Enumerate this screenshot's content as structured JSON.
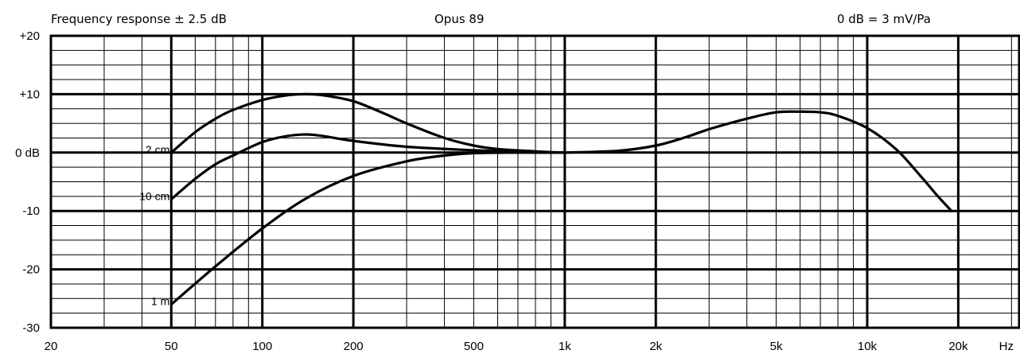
{
  "header": {
    "left": "Frequency response ± 2.5 dB",
    "center": "Opus 89",
    "right": "0 dB = 3 mV/Pa"
  },
  "chart_data": {
    "type": "line",
    "title": "Opus 89",
    "subtitle": "Frequency response ± 2.5 dB",
    "annotation": "0 dB = 3 mV/Pa",
    "xscale": "log",
    "xlim": [
      20,
      32000
    ],
    "ylim": [
      -30,
      20
    ],
    "xunit_label": "Hz",
    "grid": true,
    "x_ticks": [
      {
        "value": 20,
        "label": "20"
      },
      {
        "value": 50,
        "label": "50"
      },
      {
        "value": 100,
        "label": "100"
      },
      {
        "value": 200,
        "label": "200"
      },
      {
        "value": 500,
        "label": "500"
      },
      {
        "value": 1000,
        "label": "1k"
      },
      {
        "value": 2000,
        "label": "2k"
      },
      {
        "value": 5000,
        "label": "5k"
      },
      {
        "value": 10000,
        "label": "10k"
      },
      {
        "value": 20000,
        "label": "20k"
      }
    ],
    "y_ticks": [
      {
        "value": 20,
        "label": "+20"
      },
      {
        "value": 10,
        "label": "+10"
      },
      {
        "value": 0,
        "label": "0 dB"
      },
      {
        "value": -10,
        "label": "-10"
      },
      {
        "value": -20,
        "label": "-20"
      },
      {
        "value": -30,
        "label": "-30"
      }
    ],
    "series": [
      {
        "name": "2 cm",
        "x": [
          50,
          60,
          70,
          80,
          100,
          120,
          140,
          160,
          200,
          250,
          300,
          400,
          500,
          600,
          800,
          1000
        ],
        "y": [
          0,
          3.5,
          5.8,
          7.3,
          9.0,
          9.8,
          10.0,
          9.8,
          8.8,
          6.8,
          5.0,
          2.5,
          1.2,
          0.6,
          0.2,
          0
        ]
      },
      {
        "name": "10 cm",
        "x": [
          50,
          60,
          70,
          80,
          100,
          120,
          140,
          160,
          200,
          300,
          500,
          700,
          1000
        ],
        "y": [
          -8,
          -4.5,
          -2,
          -0.5,
          1.8,
          2.8,
          3.1,
          2.8,
          2.0,
          1.0,
          0.4,
          0.1,
          0
        ]
      },
      {
        "name": "1 m",
        "x": [
          50,
          70,
          100,
          140,
          200,
          300,
          400,
          500,
          700,
          1000
        ],
        "y": [
          -26,
          -19.5,
          -13,
          -7.8,
          -4.0,
          -1.5,
          -0.5,
          -0.1,
          0,
          0
        ]
      },
      {
        "name": "",
        "x": [
          1000,
          1500,
          2000,
          2500,
          3000,
          4000,
          5000,
          6000,
          7000,
          8000,
          10000,
          12500,
          15000,
          17000,
          19000
        ],
        "y": [
          0,
          0.3,
          1.2,
          2.6,
          4.0,
          5.8,
          6.9,
          7.0,
          6.9,
          6.3,
          4.2,
          0.5,
          -4.0,
          -7.3,
          -10.0
        ]
      }
    ]
  }
}
